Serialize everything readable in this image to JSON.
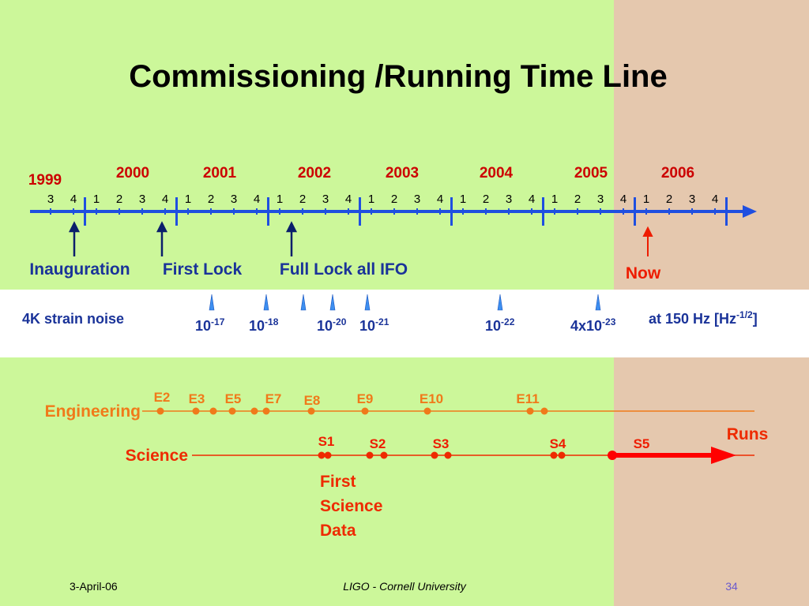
{
  "title": "Commissioning /Running Time Line",
  "timeline": {
    "years": [
      "1999",
      "2000",
      "2001",
      "2002",
      "2003",
      "2004",
      "2005",
      "2006"
    ],
    "quarters": [
      "3",
      "4",
      "1",
      "2",
      "3",
      "4",
      "1",
      "2",
      "3",
      "4",
      "1",
      "2",
      "3",
      "4",
      "1",
      "2",
      "3",
      "4",
      "1",
      "2",
      "3",
      "4",
      "1",
      "2",
      "3",
      "4",
      "1",
      "2",
      "3",
      "4"
    ]
  },
  "milestones": [
    "Inauguration",
    "First Lock",
    "Full Lock all IFO"
  ],
  "now": "Now",
  "strain": {
    "label": "4K strain noise",
    "values": [
      {
        "base": "10",
        "exp": "-17"
      },
      {
        "base": "10",
        "exp": "-18"
      },
      {
        "base": "10",
        "exp": "-20"
      },
      {
        "base": "10",
        "exp": "-21"
      },
      {
        "base": "10",
        "exp": "-22"
      },
      {
        "base": "4x10",
        "exp": "-23"
      }
    ],
    "unit": {
      "text": "at 150 Hz [Hz",
      "exp": "-1/2",
      "close": "]"
    }
  },
  "runs": {
    "title": "Runs",
    "engineering": {
      "label": "Engineering",
      "runs": [
        "E2",
        "E3",
        "E5",
        "E7",
        "E8",
        "E9",
        "E10",
        "E11"
      ]
    },
    "science": {
      "label": "Science",
      "runs": [
        "S1",
        "S2",
        "S3",
        "S4",
        "S5"
      ]
    },
    "note": [
      "First",
      "Science",
      "Data"
    ]
  },
  "footer": {
    "date": "3-April-06",
    "center": "LIGO - Cornell University",
    "page": "34"
  }
}
